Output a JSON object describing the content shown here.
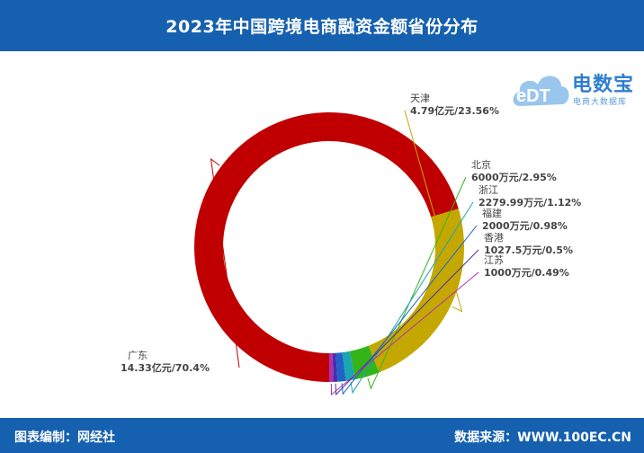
{
  "header": {
    "title": "2023年中国跨境电商融资金额省份分布"
  },
  "logo": {
    "mark": "eDT",
    "name": "电数宝",
    "tagline": "电商大数据库"
  },
  "footer": {
    "editor": "图表编制：网经社",
    "source": "数据来源：WWW.100EC.CN"
  },
  "chart_data": {
    "type": "pie",
    "title": "2023年中国跨境电商融资金额省份分布",
    "slices": [
      {
        "name": "广东",
        "value_text": "14.33亿元",
        "percent": 70.4,
        "color": "#c00000"
      },
      {
        "name": "天津",
        "value_text": "4.79亿元",
        "percent": 23.56,
        "color": "#c4a800"
      },
      {
        "name": "北京",
        "value_text": "6000万元",
        "percent": 2.95,
        "color": "#33b51a"
      },
      {
        "name": "浙江",
        "value_text": "2279.99万元",
        "percent": 1.12,
        "color": "#1aa6b3"
      },
      {
        "name": "福建",
        "value_text": "2000万元",
        "percent": 0.98,
        "color": "#1f63c9"
      },
      {
        "name": "香港",
        "value_text": "1027.5万元",
        "percent": 0.5,
        "color": "#4a2ea8"
      },
      {
        "name": "江苏",
        "value_text": "1000万元",
        "percent": 0.49,
        "color": "#b02fb5"
      }
    ]
  }
}
